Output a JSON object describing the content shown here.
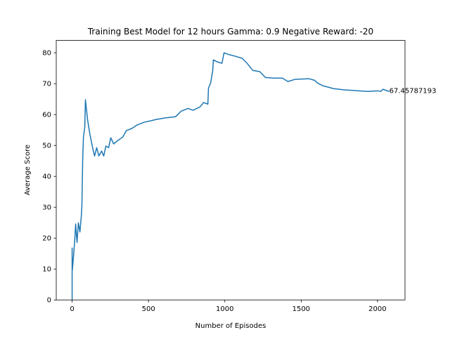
{
  "chart_data": {
    "type": "line",
    "title": "Training Best Model for 12 hours Gamma: 0.9 Negative Reward: -20",
    "x_label": "Number of Episodes",
    "y_label": "Average Score",
    "annotation": "67.45787193",
    "series": [
      {
        "color": "#1f77b4",
        "x": [
          0,
          0,
          1,
          9,
          18,
          23,
          32,
          41,
          51,
          60,
          64,
          69,
          74,
          83,
          87,
          101,
          115,
          134,
          147,
          161,
          175,
          193,
          207,
          221,
          239,
          253,
          272,
          299,
          331,
          355,
          391,
          424,
          470,
          516,
          548,
          608,
          677,
          714,
          760,
          792,
          838,
          861,
          889,
          893,
          907,
          921,
          925,
          953,
          981,
          995,
          1022,
          1068,
          1114,
          1146,
          1183,
          1229,
          1266,
          1321,
          1377,
          1413,
          1459,
          1552,
          1588,
          1607,
          1644,
          1713,
          1782,
          1874,
          1943,
          2000,
          2021,
          2035,
          2077
        ],
        "values": [
          0,
          16.8,
          9.5,
          14,
          20,
          24.6,
          18.6,
          25,
          22,
          27,
          30.5,
          45,
          52.7,
          56,
          64.8,
          58.4,
          54,
          49.3,
          46.6,
          49.3,
          46.6,
          48.2,
          46.6,
          49.8,
          49.3,
          52.5,
          50.5,
          51.6,
          52.7,
          54.8,
          55.5,
          56.6,
          57.5,
          58,
          58.4,
          58.9,
          59.3,
          61.1,
          62,
          61.4,
          62.5,
          63.9,
          63.4,
          68.6,
          70.2,
          74.3,
          77.7,
          77,
          76.6,
          80,
          79.5,
          78.9,
          78.2,
          76.6,
          74.3,
          73.9,
          72,
          71.8,
          71.8,
          70.7,
          71.4,
          71.6,
          71.1,
          70.2,
          69.3,
          68.4,
          68,
          67.7,
          67.5,
          67.7,
          67.5,
          68.2,
          67.45787193
        ]
      }
    ],
    "xlim": [
      -104,
      2180
    ],
    "ylim": [
      0,
      84
    ],
    "xticks": [
      0,
      500,
      1000,
      1500,
      2000
    ],
    "yticks": [
      0,
      10,
      20,
      30,
      40,
      50,
      60,
      70,
      80
    ]
  }
}
